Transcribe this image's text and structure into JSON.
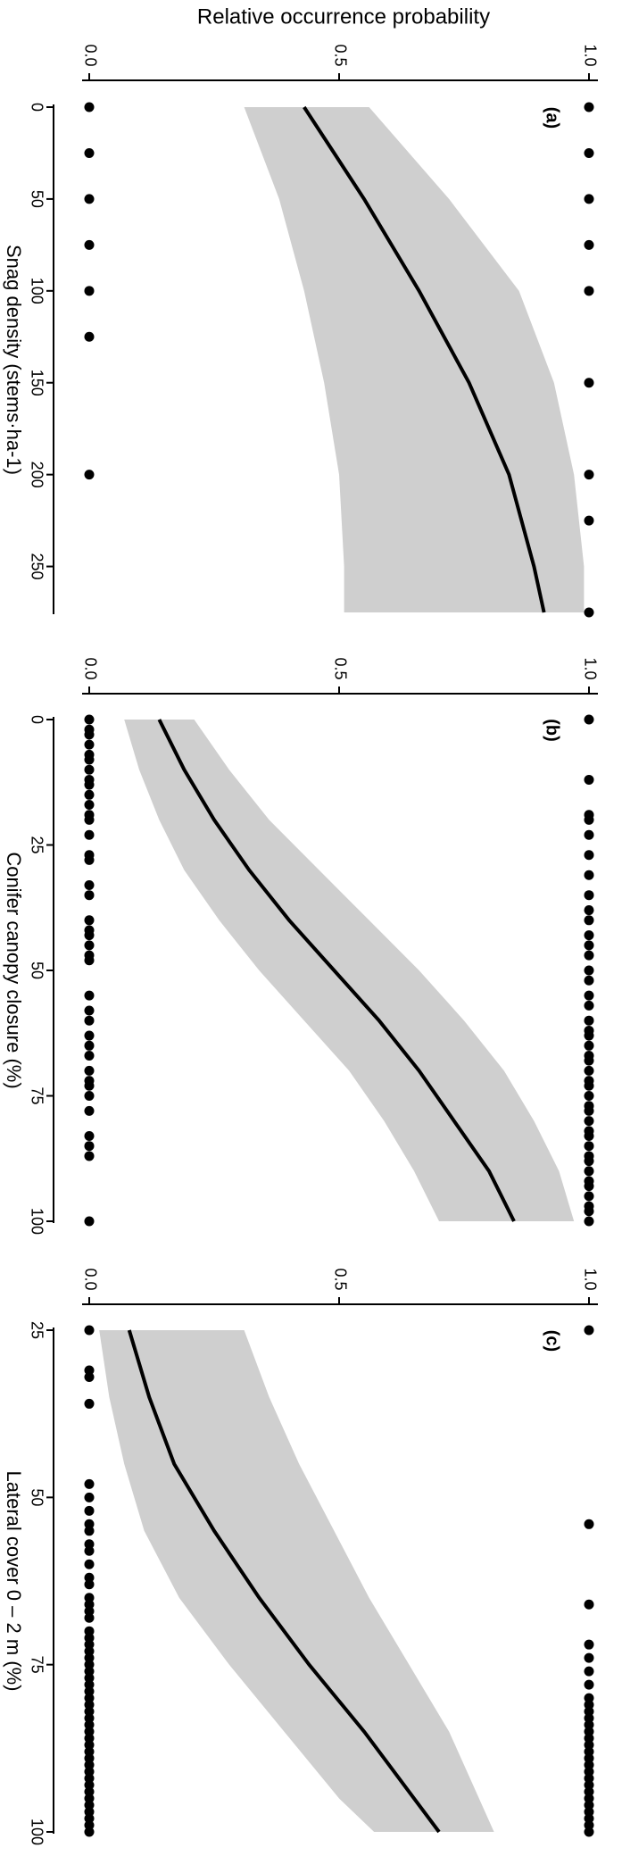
{
  "chart_data": [
    {
      "type": "line",
      "ylabel": "Relative occurrence probability",
      "label": "(a)",
      "xlabel": "Snag density (stems·ha-1)",
      "xlim": [
        0,
        275
      ],
      "xticks": [
        0,
        50,
        100,
        150,
        200,
        250
      ],
      "ylim": [
        0,
        1
      ],
      "yticks": [
        {
          "value": 0,
          "label": "0.0"
        },
        0.5,
        {
          "value": 1,
          "label": "1.0"
        }
      ],
      "x": [
        0,
        50,
        100,
        150,
        200,
        250,
        275
      ],
      "fit": [
        0.43,
        0.55,
        0.66,
        0.76,
        0.84,
        0.89,
        0.91
      ],
      "lower": [
        0.31,
        0.38,
        0.43,
        0.47,
        0.5,
        0.51,
        0.51
      ],
      "upper": [
        0.56,
        0.72,
        0.86,
        0.93,
        0.97,
        0.99,
        0.99
      ],
      "points": {
        "x": [
          0,
          25,
          50,
          75,
          100,
          150,
          200,
          225,
          275,
          0,
          25,
          50,
          75,
          100,
          125,
          200
        ],
        "values": [
          1,
          1,
          1,
          1,
          1,
          1,
          1,
          1,
          1,
          0,
          0,
          0,
          0,
          0,
          0,
          0
        ]
      }
    },
    {
      "type": "line",
      "label": "(b)",
      "xlabel": "Conifer canopy closure (%)",
      "xlim": [
        0,
        100
      ],
      "xticks": [
        0,
        25,
        50,
        75,
        100
      ],
      "ylim": [
        0,
        1
      ],
      "yticks": [
        {
          "value": 0,
          "label": "0.0"
        },
        0.5,
        {
          "value": 1,
          "label": "1.0"
        }
      ],
      "x": [
        0,
        10,
        20,
        30,
        40,
        50,
        60,
        70,
        80,
        90,
        100
      ],
      "fit": [
        0.14,
        0.19,
        0.25,
        0.32,
        0.4,
        0.49,
        0.58,
        0.66,
        0.73,
        0.8,
        0.85
      ],
      "lower": [
        0.07,
        0.1,
        0.14,
        0.19,
        0.26,
        0.34,
        0.43,
        0.52,
        0.59,
        0.65,
        0.7
      ],
      "upper": [
        0.21,
        0.28,
        0.36,
        0.46,
        0.56,
        0.66,
        0.75,
        0.83,
        0.89,
        0.94,
        0.97
      ],
      "points": {
        "x": [
          0,
          12,
          19,
          20,
          23,
          27,
          31,
          35,
          38,
          40,
          43,
          45,
          47,
          50,
          52,
          55,
          57,
          60,
          62,
          63,
          65,
          67,
          68,
          70,
          72,
          73,
          75,
          77,
          78,
          80,
          82,
          83,
          85,
          87,
          88,
          90,
          92,
          93,
          95,
          97,
          98,
          100,
          0,
          2,
          3,
          5,
          7,
          8,
          10,
          12,
          13,
          15,
          17,
          19,
          20,
          23,
          27,
          28,
          33,
          35,
          40,
          42,
          43,
          45,
          47,
          48,
          55,
          58,
          60,
          63,
          65,
          67,
          70,
          72,
          73,
          75,
          78,
          83,
          85,
          87,
          100
        ],
        "values": [
          1,
          1,
          1,
          1,
          1,
          1,
          1,
          1,
          1,
          1,
          1,
          1,
          1,
          1,
          1,
          1,
          1,
          1,
          1,
          1,
          1,
          1,
          1,
          1,
          1,
          1,
          1,
          1,
          1,
          1,
          1,
          1,
          1,
          1,
          1,
          1,
          1,
          1,
          1,
          1,
          1,
          1,
          0,
          0,
          0,
          0,
          0,
          0,
          0,
          0,
          0,
          0,
          0,
          0,
          0,
          0,
          0,
          0,
          0,
          0,
          0,
          0,
          0,
          0,
          0,
          0,
          0,
          0,
          0,
          0,
          0,
          0,
          0,
          0,
          0,
          0,
          0,
          0,
          0,
          0,
          0
        ]
      }
    },
    {
      "type": "line",
      "label": "(c)",
      "xlabel": "Lateral cover 0 – 2 m (%)",
      "xlim": [
        25,
        100
      ],
      "xticks": [
        25,
        50,
        75,
        100
      ],
      "ylim": [
        0,
        1
      ],
      "yticks": [
        {
          "value": 0,
          "label": "0.0"
        },
        0.5,
        {
          "value": 1,
          "label": "1.0"
        }
      ],
      "x": [
        25,
        35,
        45,
        55,
        65,
        75,
        85,
        95,
        100
      ],
      "fit": [
        0.08,
        0.12,
        0.17,
        0.25,
        0.34,
        0.44,
        0.55,
        0.65,
        0.7
      ],
      "lower": [
        0.02,
        0.04,
        0.07,
        0.11,
        0.18,
        0.28,
        0.39,
        0.5,
        0.57
      ],
      "upper": [
        0.31,
        0.36,
        0.42,
        0.49,
        0.56,
        0.64,
        0.72,
        0.78,
        0.81
      ],
      "points": {
        "x": [
          25,
          54,
          66,
          72,
          74,
          76,
          78,
          80,
          81,
          82,
          83,
          84,
          85,
          86,
          87,
          88,
          89,
          90,
          91,
          92,
          93,
          94,
          95,
          96,
          97,
          98,
          99,
          100,
          25,
          31,
          32,
          36,
          48,
          50,
          52,
          54,
          55,
          57,
          58,
          60,
          62,
          63,
          65,
          66,
          67,
          68,
          70,
          71,
          72,
          73,
          74,
          75,
          76,
          77,
          78,
          79,
          80,
          81,
          82,
          83,
          84,
          85,
          86,
          87,
          88,
          89,
          90,
          91,
          92,
          93,
          94,
          95,
          96,
          97,
          98,
          99,
          100
        ],
        "values": [
          1,
          1,
          1,
          1,
          1,
          1,
          1,
          1,
          1,
          1,
          1,
          1,
          1,
          1,
          1,
          1,
          1,
          1,
          1,
          1,
          1,
          1,
          1,
          1,
          1,
          1,
          1,
          1,
          0,
          0,
          0,
          0,
          0,
          0,
          0,
          0,
          0,
          0,
          0,
          0,
          0,
          0,
          0,
          0,
          0,
          0,
          0,
          0,
          0,
          0,
          0,
          0,
          0,
          0,
          0,
          0,
          0,
          0,
          0,
          0,
          0,
          0,
          0,
          0,
          0,
          0,
          0,
          0,
          0,
          0,
          0,
          0,
          0,
          0,
          0,
          0,
          0
        ]
      }
    }
  ]
}
